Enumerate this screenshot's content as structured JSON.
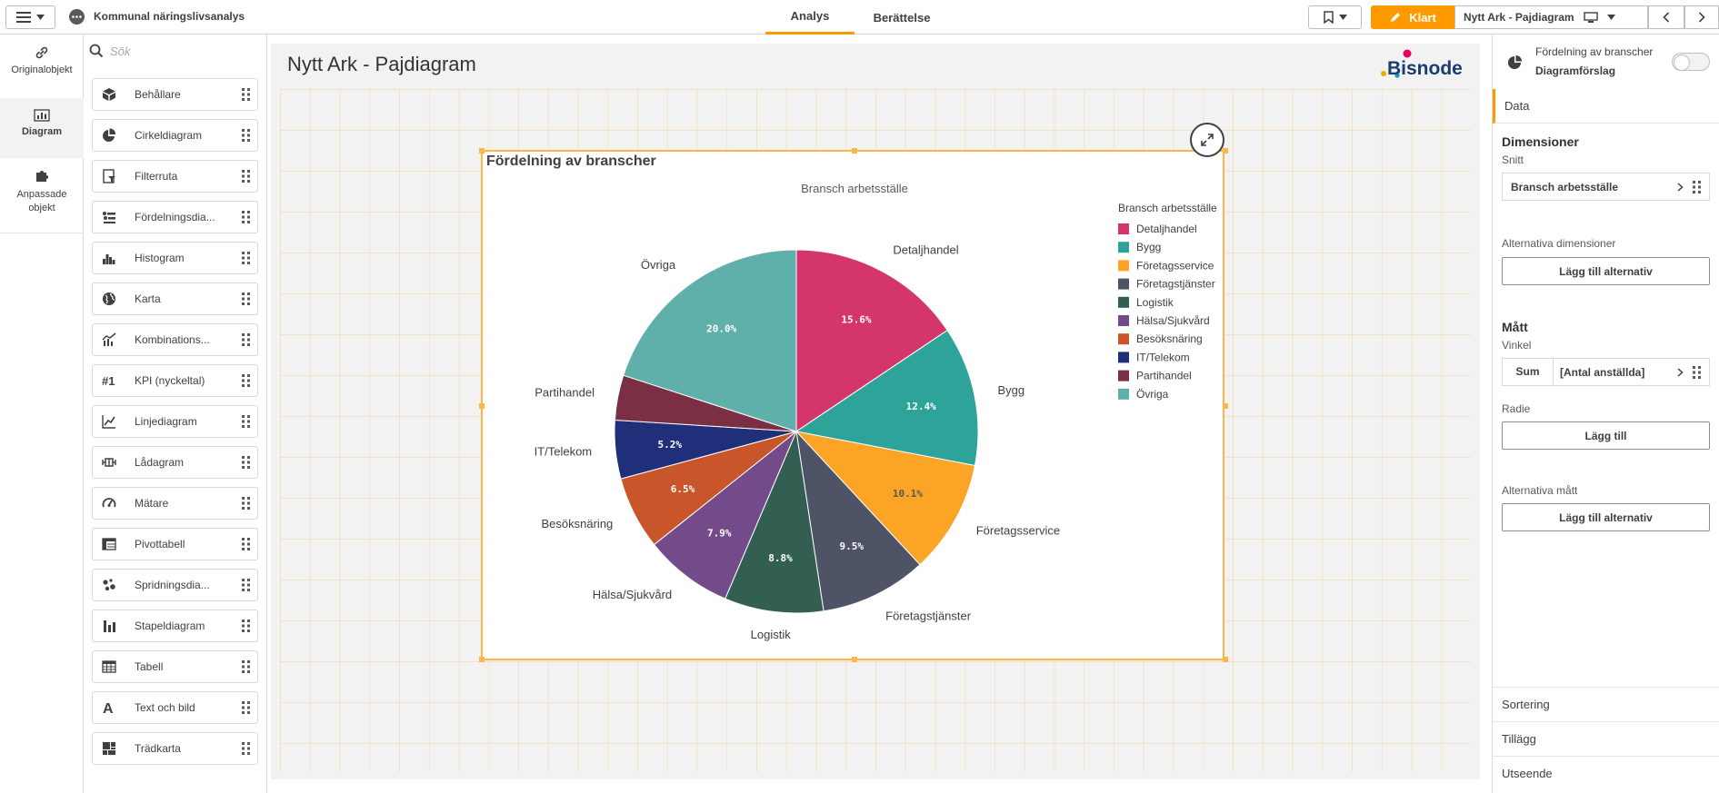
{
  "app": {
    "title": "Kommunal näringslivsanalys"
  },
  "tabs": [
    {
      "label": "Analys"
    },
    {
      "label": "Berättelse"
    }
  ],
  "toolbar": {
    "done_label": "Klart",
    "sheet_name": "Nytt Ark - Pajdiagram"
  },
  "rail": {
    "items": [
      {
        "label": "Originalobjekt",
        "icon": "link-icon"
      },
      {
        "label": "Diagram",
        "icon": "bar-chart-icon"
      },
      {
        "label": "Anpassade objekt",
        "icon": "puzzle-icon"
      }
    ]
  },
  "objects": {
    "search_placeholder": "Sök",
    "items": [
      {
        "label": "Behållare",
        "icon": "container-icon"
      },
      {
        "label": "Cirkeldiagram",
        "icon": "pie-chart-icon"
      },
      {
        "label": "Filterruta",
        "icon": "filter-pane-icon"
      },
      {
        "label": "Fördelningsdia...",
        "icon": "distribution-icon"
      },
      {
        "label": "Histogram",
        "icon": "histogram-icon"
      },
      {
        "label": "Karta",
        "icon": "globe-icon"
      },
      {
        "label": "Kombinations...",
        "icon": "combo-chart-icon"
      },
      {
        "label": "KPI (nyckeltal)",
        "icon": "kpi-icon"
      },
      {
        "label": "Linjediagram",
        "icon": "line-chart-icon"
      },
      {
        "label": "Lådagram",
        "icon": "box-plot-icon"
      },
      {
        "label": "Mätare",
        "icon": "gauge-icon"
      },
      {
        "label": "Pivottabell",
        "icon": "pivot-table-icon"
      },
      {
        "label": "Spridningsdia...",
        "icon": "scatter-icon"
      },
      {
        "label": "Stapeldiagram",
        "icon": "bar-chart-icon"
      },
      {
        "label": "Tabell",
        "icon": "table-icon"
      },
      {
        "label": "Text och bild",
        "icon": "text-image-icon"
      },
      {
        "label": "Trädkarta",
        "icon": "treemap-icon"
      }
    ]
  },
  "sheet": {
    "title": "Nytt Ark - Pajdiagram",
    "logo_text": "Bisnode"
  },
  "chart_data": {
    "type": "pie",
    "title": "Fördelning av branscher",
    "subtitle": "Bransch arbetsställe",
    "legend_title": "Bransch arbetsställe",
    "legend_position": "right",
    "slices": [
      {
        "label": "Detaljhandel",
        "value": 15.6,
        "display": "15.6%",
        "color": "#d4356a"
      },
      {
        "label": "Bygg",
        "value": 12.4,
        "display": "12.4%",
        "color": "#2ea39a"
      },
      {
        "label": "Företagsservice",
        "value": 10.1,
        "display": "10.1%",
        "color": "#fba425"
      },
      {
        "label": "Företagstjänster",
        "value": 9.5,
        "display": "9.5%",
        "color": "#4e5366"
      },
      {
        "label": "Logistik",
        "value": 8.8,
        "display": "8.8%",
        "color": "#335f52"
      },
      {
        "label": "Hälsa/Sjukvård",
        "value": 7.9,
        "display": "7.9%",
        "color": "#744b8a"
      },
      {
        "label": "Besöksnäring",
        "value": 6.5,
        "display": "6.5%",
        "color": "#c9552a"
      },
      {
        "label": "IT/Telekom",
        "value": 5.2,
        "display": "5.2%",
        "color": "#1f2f7a"
      },
      {
        "label": "Partihandel",
        "value": 4.0,
        "display": "",
        "color": "#7a2f45"
      },
      {
        "label": "Övriga",
        "value": 20.0,
        "display": "20.0%",
        "color": "#5fb0ab"
      }
    ]
  },
  "properties": {
    "object_name": "Fördelning av branscher",
    "suggestions_label": "Diagramförslag",
    "data_tab": "Data",
    "dimensions_heading": "Dimensioner",
    "slice_label": "Snitt",
    "dimension_field": "Bransch arbetsställe",
    "alt_dimensions_label": "Alternativa dimensioner",
    "add_alternative": "Lägg till alternativ",
    "measures_heading": "Mått",
    "angle_label": "Vinkel",
    "measure_agg": "Sum",
    "measure_field": "[Antal anställda]",
    "radius_label": "Radie",
    "add_label": "Lägg till",
    "alt_measures_label": "Alternativa mått",
    "add_alternative_2": "Lägg till alternativ",
    "sorting": "Sortering",
    "addons": "Tillägg",
    "appearance": "Utseende"
  }
}
